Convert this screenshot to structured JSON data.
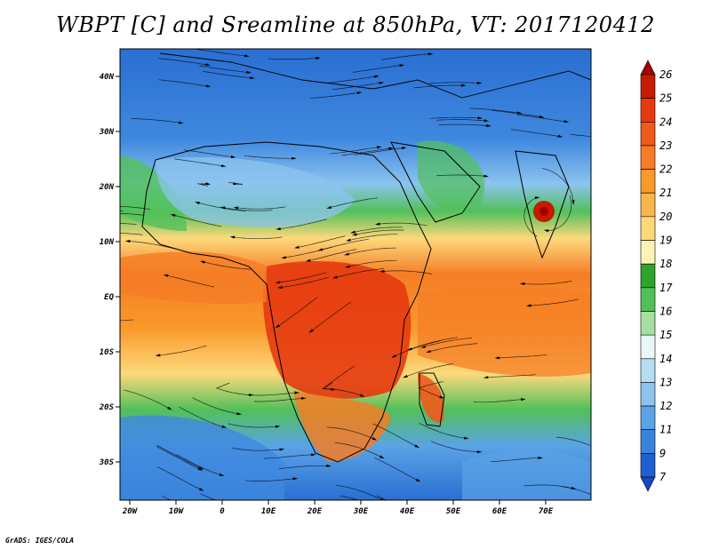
{
  "title": "WBPT [C] and Sreamline at 850hPa, VT: 2017120412",
  "credit": "GrADS: IGES/COLA",
  "map": {
    "lat_ticks": [
      "40N",
      "30N",
      "20N",
      "10N",
      "EQ",
      "10S",
      "20S",
      "30S"
    ],
    "lon_ticks": [
      "20W",
      "10W",
      "0",
      "10E",
      "20E",
      "30E",
      "40E",
      "50E",
      "60E",
      "70E"
    ]
  },
  "colorbar": {
    "labels": [
      "26",
      "25",
      "24",
      "23",
      "22",
      "21",
      "20",
      "19",
      "18",
      "17",
      "16",
      "15",
      "14",
      "13",
      "12",
      "11",
      "9",
      "7"
    ],
    "colors": [
      "#a50000",
      "#c51b00",
      "#e53a0f",
      "#ef5a1c",
      "#f57d26",
      "#f99a2b",
      "#fbb64b",
      "#fdd97c",
      "#fdf3b4",
      "#2ea32e",
      "#52c05a",
      "#a6e0a0",
      "#e8f8f6",
      "#b6def2",
      "#8cc4ee",
      "#5aa3e6",
      "#3a83dd",
      "#1f5fd0",
      "#1746c4"
    ]
  }
}
